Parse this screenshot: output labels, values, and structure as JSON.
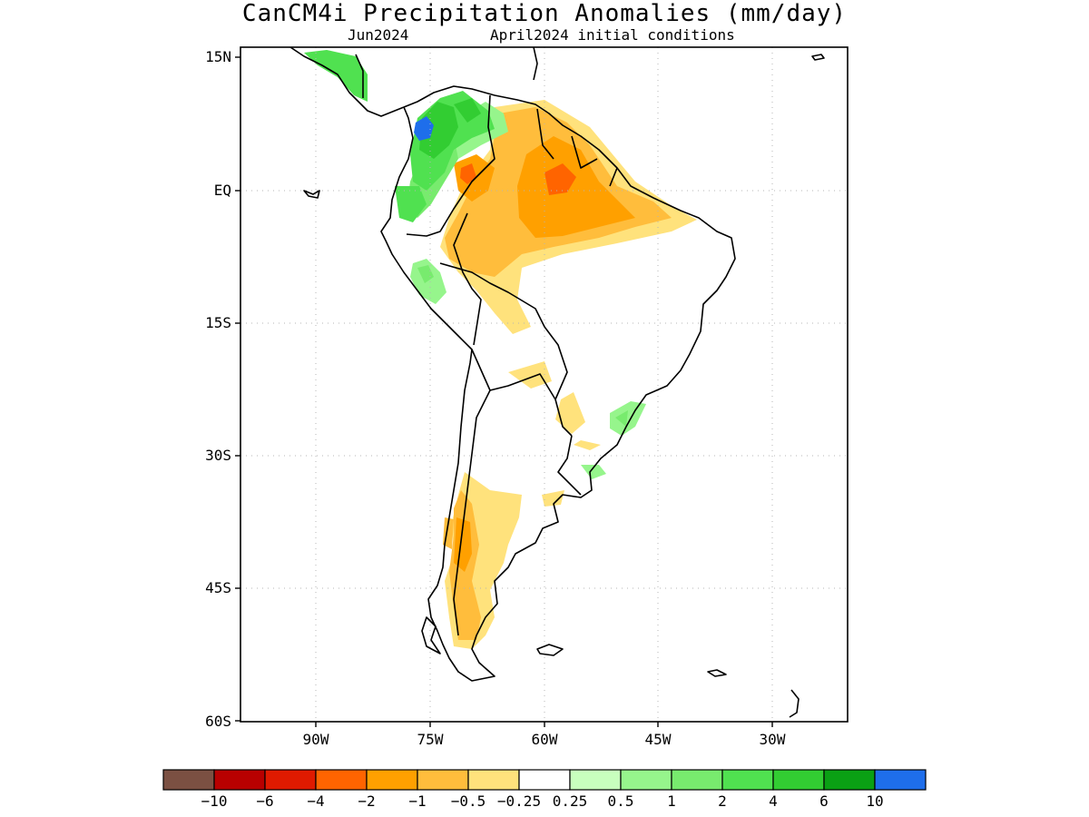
{
  "title": "CanCM4i Precipitation Anomalies (mm/day)",
  "subtitle_left": "Jun2024",
  "subtitle_right": "April2024 initial conditions",
  "axes": {
    "lat_labels": [
      "15N",
      "EQ",
      "15S",
      "30S",
      "45S",
      "60S"
    ],
    "lon_labels": [
      "90W",
      "75W",
      "60W",
      "45W",
      "30W"
    ]
  },
  "colorbar": {
    "colors": [
      "#7b5042",
      "#b80000",
      "#e01a00",
      "#ff6400",
      "#ffa000",
      "#ffbd3c",
      "#ffe27c",
      "#ffffff",
      "#c8ffbe",
      "#96f58c",
      "#78eb6e",
      "#50e150",
      "#32cd32",
      "#0aa014",
      "#1e6eeb"
    ],
    "labels": [
      "−10",
      "−6",
      "−4",
      "−2",
      "−1",
      "−0.5",
      "−0.25",
      "0.25",
      "0.5",
      "1",
      "2",
      "4",
      "6",
      "10"
    ]
  }
}
